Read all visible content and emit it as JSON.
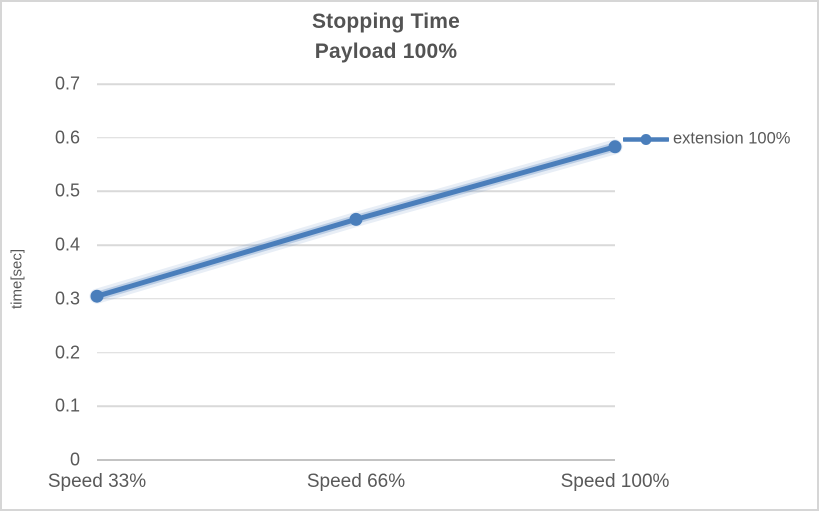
{
  "title": {
    "line1": "Stopping Time",
    "line2": "Payload 100%"
  },
  "axes": {
    "y_title": "time[sec]"
  },
  "legend": {
    "label": "extension 100%"
  },
  "colors": {
    "series": "#4A7EBB",
    "series_halo": "#B9CDE9",
    "gridline": "#D9D9D9",
    "axis_line": "#C3C3C3",
    "label_text": "#595959",
    "title_text": "#535353",
    "background": "#FFFFFF",
    "border": "#D6D6D6"
  },
  "chart_data": {
    "type": "line",
    "title": "Stopping Time",
    "subtitle": "Payload 100%",
    "categories": [
      "Speed 33%",
      "Speed 66%",
      "Speed 100%"
    ],
    "series": [
      {
        "name": "extension 100%",
        "values": [
          0.305,
          0.448,
          0.583
        ],
        "color": "#4A7EBB",
        "marker": "circle",
        "glow": true
      }
    ],
    "xlabel": "",
    "ylabel": "time[sec]",
    "ylim": [
      0,
      0.7
    ],
    "ytick_step": 0.1,
    "yticks": [
      0.7,
      0.6,
      0.5,
      0.4,
      0.3,
      0.2,
      0.1,
      0
    ],
    "grid": true,
    "legend_position": "right"
  }
}
